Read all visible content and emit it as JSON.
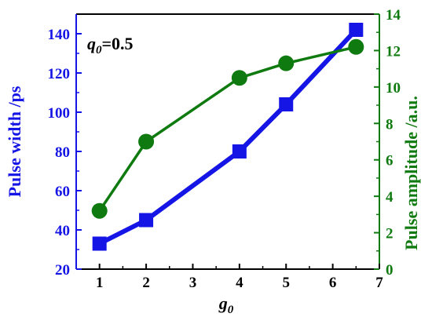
{
  "chart_data": {
    "type": "line",
    "x": [
      1,
      2,
      4,
      5,
      6.5
    ],
    "xlabel_main": "g",
    "xlabel_sub": "0",
    "xlim": [
      0.5,
      7
    ],
    "xticks": [
      "1",
      "2",
      "3",
      "4",
      "5",
      "6",
      "7"
    ],
    "ylabel_left": "Pulse width  /ps",
    "ylim_left": [
      20,
      150
    ],
    "yticks_left": [
      "20",
      "40",
      "60",
      "80",
      "100",
      "120",
      "140"
    ],
    "ylabel_right": "Pulse amplitude /a.u.",
    "ylim_right": [
      0,
      14
    ],
    "yticks_right": [
      "0",
      "2",
      "4",
      "6",
      "8",
      "10",
      "12",
      "14"
    ],
    "annotation": {
      "main": "q",
      "sub": "0",
      "rest": "=0.5"
    },
    "series": [
      {
        "axis": "left",
        "marker": "square",
        "color": "#1515e6",
        "values": [
          33,
          45,
          80,
          104,
          142
        ]
      },
      {
        "axis": "right",
        "marker": "circle",
        "color": "#0f7a0f",
        "values": [
          3.2,
          7.0,
          10.5,
          11.3,
          12.2
        ]
      }
    ],
    "left_axis_color": "#1515e6",
    "right_axis_color": "#0f7a0f",
    "grid": false
  }
}
